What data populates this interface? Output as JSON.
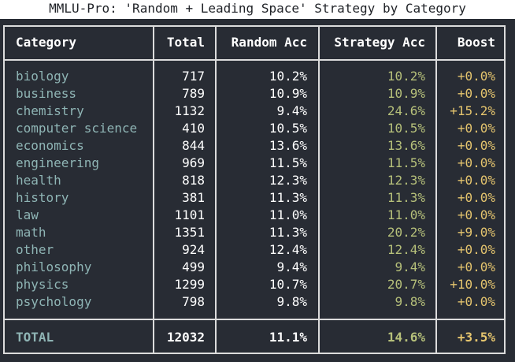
{
  "title": "MMLU-Pro: 'Random + Leading Space' Strategy by Category",
  "headers": {
    "category": "Category",
    "total": "Total",
    "random_acc": "Random Acc",
    "strategy_acc": "Strategy Acc",
    "boost": "Boost"
  },
  "rows": [
    {
      "category": "biology",
      "total": "717",
      "random_acc": "10.2%",
      "strategy_acc": "10.2%",
      "boost": "+0.0%"
    },
    {
      "category": "business",
      "total": "789",
      "random_acc": "10.9%",
      "strategy_acc": "10.9%",
      "boost": "+0.0%"
    },
    {
      "category": "chemistry",
      "total": "1132",
      "random_acc": "9.4%",
      "strategy_acc": "24.6%",
      "boost": "+15.2%"
    },
    {
      "category": "computer science",
      "total": "410",
      "random_acc": "10.5%",
      "strategy_acc": "10.5%",
      "boost": "+0.0%"
    },
    {
      "category": "economics",
      "total": "844",
      "random_acc": "13.6%",
      "strategy_acc": "13.6%",
      "boost": "+0.0%"
    },
    {
      "category": "engineering",
      "total": "969",
      "random_acc": "11.5%",
      "strategy_acc": "11.5%",
      "boost": "+0.0%"
    },
    {
      "category": "health",
      "total": "818",
      "random_acc": "12.3%",
      "strategy_acc": "12.3%",
      "boost": "+0.0%"
    },
    {
      "category": "history",
      "total": "381",
      "random_acc": "11.3%",
      "strategy_acc": "11.3%",
      "boost": "+0.0%"
    },
    {
      "category": "law",
      "total": "1101",
      "random_acc": "11.0%",
      "strategy_acc": "11.0%",
      "boost": "+0.0%"
    },
    {
      "category": "math",
      "total": "1351",
      "random_acc": "11.3%",
      "strategy_acc": "20.2%",
      "boost": "+9.0%"
    },
    {
      "category": "other",
      "total": "924",
      "random_acc": "12.4%",
      "strategy_acc": "12.4%",
      "boost": "+0.0%"
    },
    {
      "category": "philosophy",
      "total": "499",
      "random_acc": "9.4%",
      "strategy_acc": "9.4%",
      "boost": "+0.0%"
    },
    {
      "category": "physics",
      "total": "1299",
      "random_acc": "10.7%",
      "strategy_acc": "20.7%",
      "boost": "+10.0%"
    },
    {
      "category": "psychology",
      "total": "798",
      "random_acc": "9.8%",
      "strategy_acc": "9.8%",
      "boost": "+0.0%"
    }
  ],
  "total_row": {
    "category": "TOTAL",
    "total": "12032",
    "random_acc": "11.1%",
    "strategy_acc": "14.6%",
    "boost": "+3.5%"
  },
  "colors": {
    "background": "#282c34",
    "border": "#dcdcdc",
    "category_text": "#8fb5b5",
    "number_text": "#ffffff",
    "strategy_text": "#b6c07a",
    "boost_text": "#e5c56e"
  }
}
